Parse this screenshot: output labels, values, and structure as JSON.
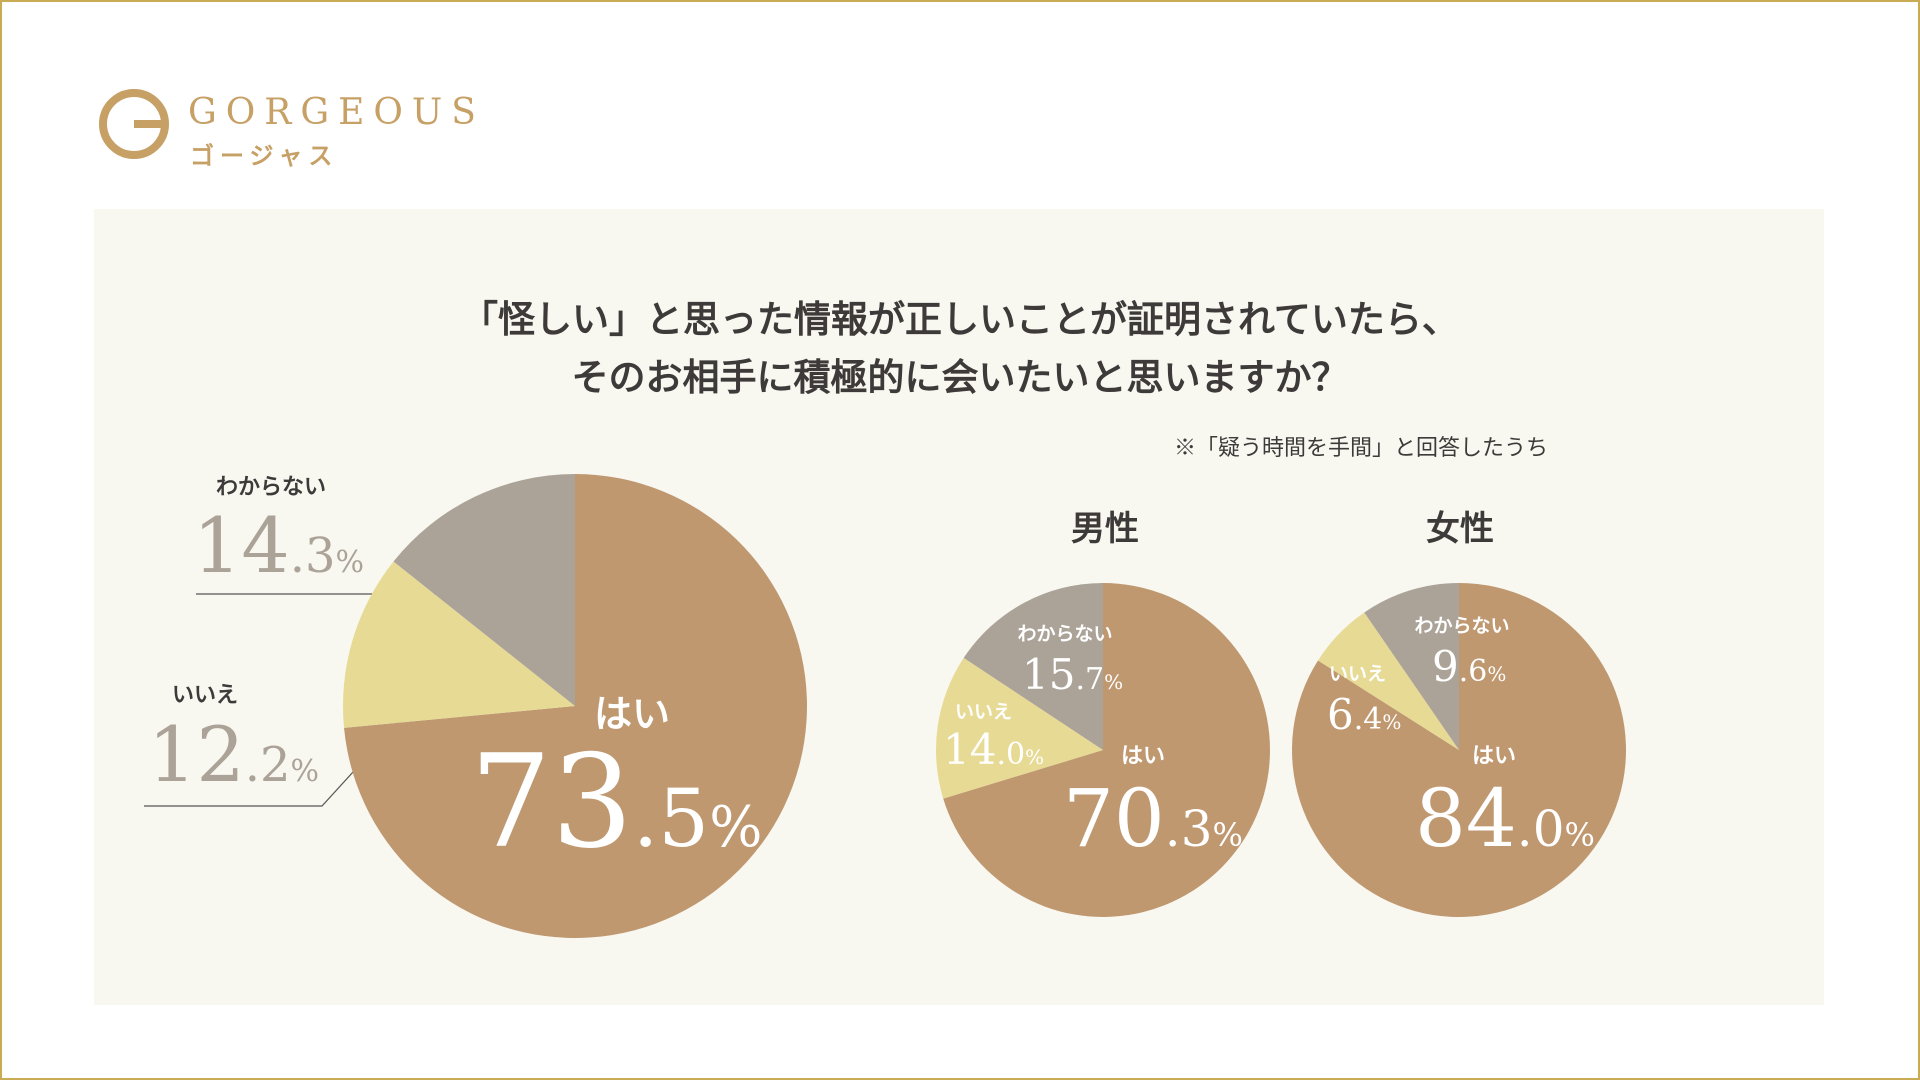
{
  "brand": {
    "name": "GORGEOUS",
    "name_ja": "ゴージャス",
    "color": "#c6a065"
  },
  "colors": {
    "yes": "#bf9870",
    "no": "#e7da95",
    "unknown": "#aba398",
    "frame": "#c9ab56",
    "panel": "#f8f7f0",
    "text": "#3e3a39"
  },
  "question": {
    "line1": "「怪しい」と思った情報が正しいことが証明されていたら、",
    "line2": "そのお相手に積極的に会いたいと思いますか？"
  },
  "note": "※「疑う時間を手間」と回答したうち",
  "chart_data": [
    {
      "type": "pie",
      "title": "",
      "slices": [
        {
          "label": "はい",
          "value": 73.5,
          "int": "73",
          "dec": ".5",
          "color": "#bf9870"
        },
        {
          "label": "いいえ",
          "value": 12.2,
          "int": "12",
          "dec": ".2",
          "color": "#e7da95"
        },
        {
          "label": "わからない",
          "value": 14.3,
          "int": "14",
          "dec": ".3",
          "color": "#aba398"
        }
      ],
      "unit": "%"
    },
    {
      "type": "pie",
      "title": "男性",
      "slices": [
        {
          "label": "はい",
          "value": 70.3,
          "int": "70",
          "dec": ".3",
          "color": "#bf9870"
        },
        {
          "label": "いいえ",
          "value": 14.0,
          "int": "14",
          "dec": ".0",
          "color": "#e7da95"
        },
        {
          "label": "わからない",
          "value": 15.7,
          "int": "15",
          "dec": ".7",
          "color": "#aba398"
        }
      ],
      "unit": "%"
    },
    {
      "type": "pie",
      "title": "女性",
      "slices": [
        {
          "label": "はい",
          "value": 84.0,
          "int": "84",
          "dec": ".0",
          "color": "#bf9870"
        },
        {
          "label": "いいえ",
          "value": 6.4,
          "int": "6",
          "dec": ".4",
          "color": "#e7da95"
        },
        {
          "label": "わからない",
          "value": 9.6,
          "int": "9",
          "dec": ".6",
          "color": "#aba398"
        }
      ],
      "unit": "%"
    }
  ]
}
